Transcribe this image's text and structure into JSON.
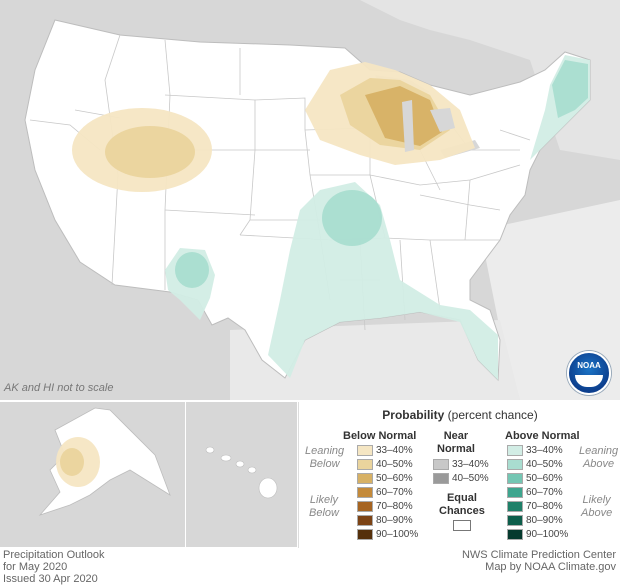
{
  "map": {
    "ak_hi_note": "AK and HI not to scale"
  },
  "legend": {
    "title_bold": "Probability",
    "title_rest": "(percent chance)",
    "below_header": "Below Normal",
    "near_header_1": "Near",
    "near_header_2": "Normal",
    "above_header": "Above Normal",
    "leaning_below_1": "Leaning",
    "leaning_below_2": "Below",
    "likely_below_1": "Likely",
    "likely_below_2": "Below",
    "leaning_above_1": "Leaning",
    "leaning_above_2": "Above",
    "likely_above_1": "Likely",
    "likely_above_2": "Above",
    "equal_1": "Equal",
    "equal_2": "Chances",
    "below_rows": [
      {
        "label": "33–40%",
        "color": "#f5e6c3"
      },
      {
        "label": "40–50%",
        "color": "#ead49d"
      },
      {
        "label": "50–60%",
        "color": "#d7b165"
      },
      {
        "label": "60–70%",
        "color": "#c48a3a"
      },
      {
        "label": "70–80%",
        "color": "#a66421"
      },
      {
        "label": "80–90%",
        "color": "#7c4315"
      },
      {
        "label": "90–100%",
        "color": "#55300b"
      }
    ],
    "near_rows": [
      {
        "label": "33–40%",
        "color": "#c8c8c8"
      },
      {
        "label": "40–50%",
        "color": "#9a9a9a"
      }
    ],
    "above_rows": [
      {
        "label": "33–40%",
        "color": "#d2ede5"
      },
      {
        "label": "40–50%",
        "color": "#a9ddd0"
      },
      {
        "label": "50–60%",
        "color": "#74c6b3"
      },
      {
        "label": "60–70%",
        "color": "#3ea58e"
      },
      {
        "label": "70–80%",
        "color": "#1f8069"
      },
      {
        "label": "80–90%",
        "color": "#0d5e4b"
      },
      {
        "label": "90–100%",
        "color": "#053a2e"
      }
    ]
  },
  "footer": {
    "left_1": "Precipitation Outlook",
    "left_2": "for May 2020",
    "left_3": "Issued 30 Apr 2020",
    "right_1": "NWS Climate Prediction Center",
    "right_2": "Map by NOAA Climate.gov"
  },
  "logo_text": "NOAA"
}
